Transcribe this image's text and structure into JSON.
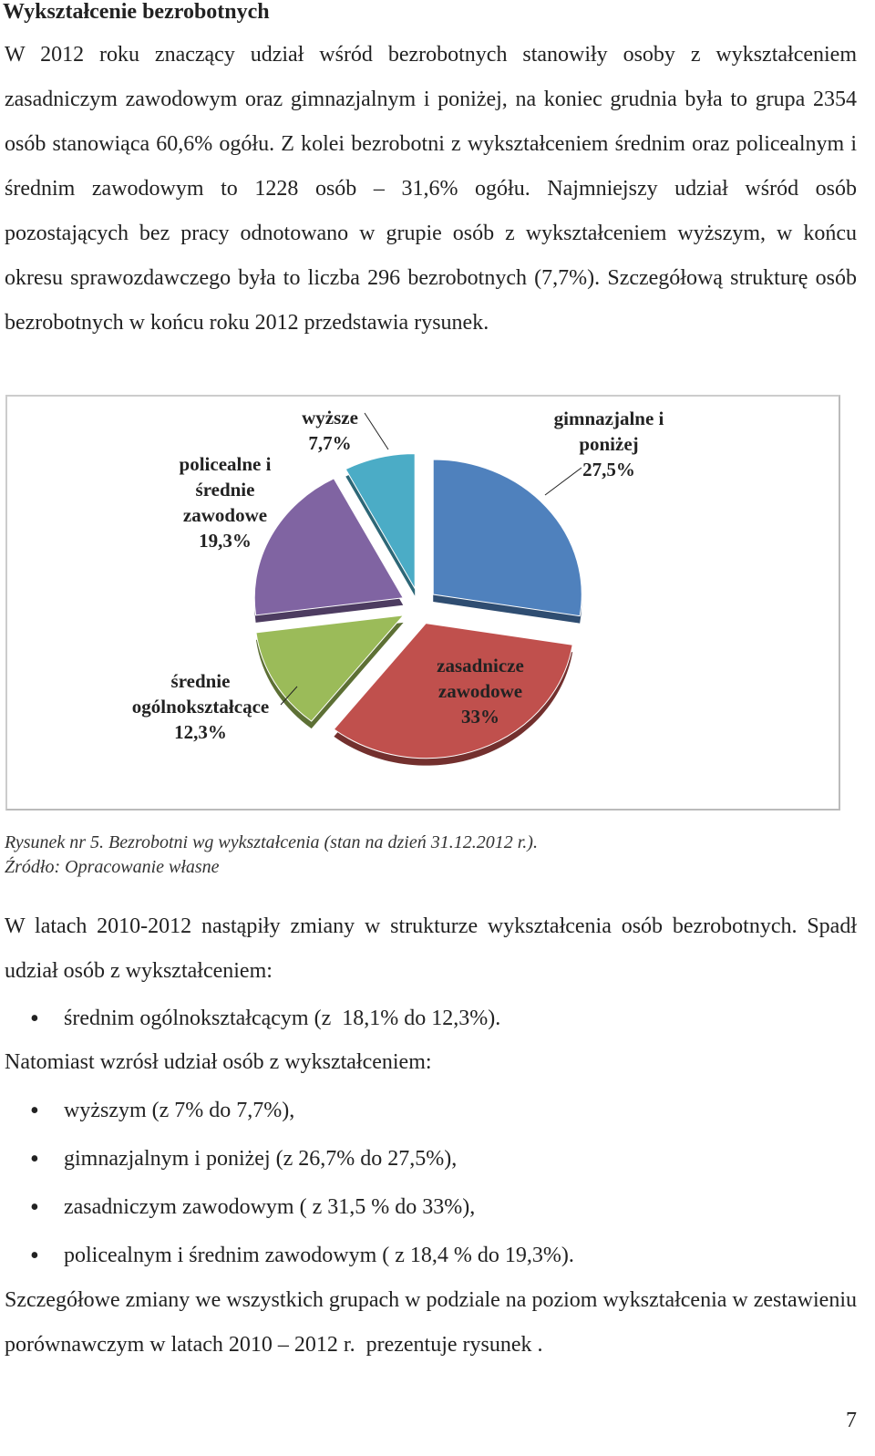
{
  "heading": "Wykształcenie bezrobotnych",
  "paragraph1": "W 2012 roku znaczący udział wśród bezrobotnych stanowiły osoby z wykształceniem zasadniczym zawodowym oraz gimnazjalnym i poniżej, na koniec grudnia była to grupa 2354 osób stanowiąca 60,6% ogółu. Z kolei bezrobotni z wykształceniem średnim oraz policealnym i średnim zawodowym to 1228 osób – 31,6% ogółu. Najmniejszy udział wśród osób pozostających bez pracy odnotowano w grupie osób z wykształceniem wyższym, w końcu okresu sprawozdawczego była to liczba 296 bezrobotnych (7,7%). Szczegółową strukturę osób bezrobotnych w końcu roku 2012 przedstawia rysunek.",
  "chart_data": {
    "type": "pie",
    "categories": [
      "gimnazjalne i poniżej",
      "zasadnicze zawodowe",
      "średnie ogólnokształcące",
      "policealne i średnie zawodowe",
      "wyższe"
    ],
    "values": [
      27.5,
      33,
      12.3,
      19.3,
      7.7
    ],
    "value_labels": [
      "27,5%",
      "33%",
      "12,3%",
      "19,3%",
      "7,7%"
    ],
    "colors": [
      "#4f81bd",
      "#c0504d",
      "#9bbb59",
      "#8064a2",
      "#4bacc6"
    ]
  },
  "caption": {
    "figure": "Rysunek nr 5. Bezrobotni wg wykształcenia (stan na dzień 31.12.2012 r.).",
    "source": "Źródło: Opracowanie własne"
  },
  "paragraph2": "W latach 2010-2012 nastąpiły zmiany w strukturze wykształcenia osób bezrobotnych. Spadł udział osób z wykształceniem:",
  "bullets1": [
    "średnim ogólnokształcącym (z  18,1% do 12,3%)."
  ],
  "paragraph3": "Natomiast wzrósł udział osób z wykształceniem:",
  "bullets2": [
    "wyższym (z 7% do 7,7%),",
    "gimnazjalnym i poniżej (z 26,7% do 27,5%),",
    "zasadniczym zawodowym ( z 31,5 % do 33%),",
    "policealnym i średnim zawodowym ( z 18,4 % do 19,3%)."
  ],
  "paragraph4": "Szczegółowe zmiany we wszystkich grupach w podziale na poziom wykształcenia w zestawieniu porównawczym w latach 2010 – 2012 r.  prezentuje rysunek .",
  "page_number": "7"
}
